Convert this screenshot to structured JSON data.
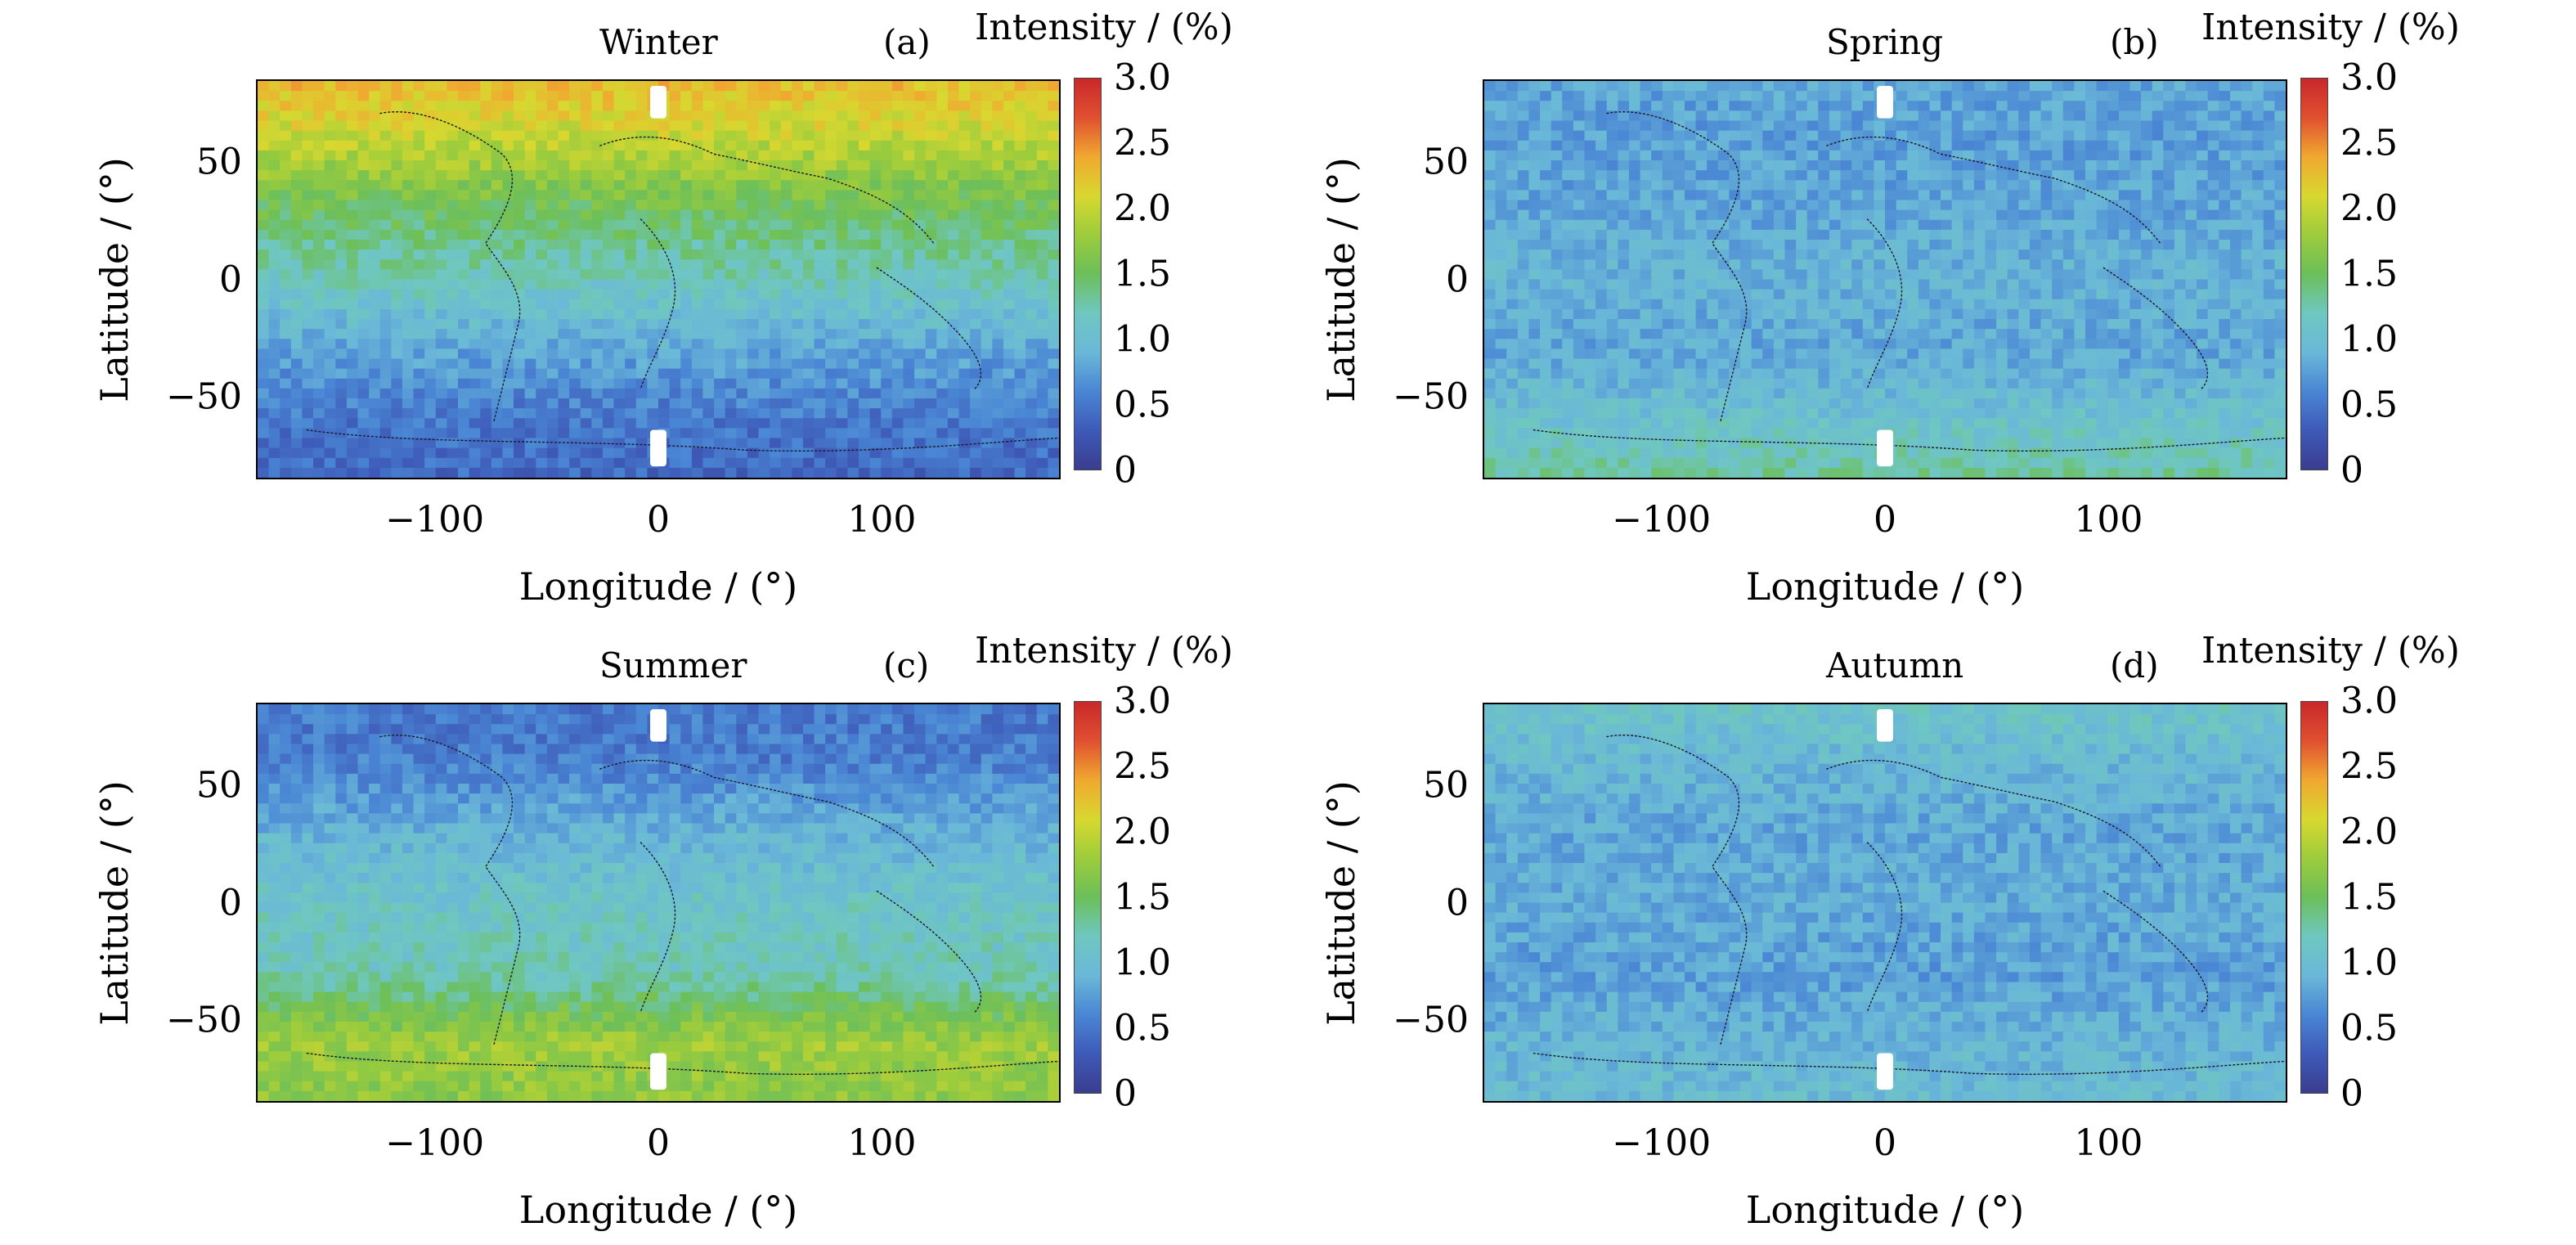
{
  "colorscale": [
    "#3a3d8f",
    "#3e5ab8",
    "#4a86d4",
    "#6ab8d8",
    "#6fc7c0",
    "#6cbf5a",
    "#9ccc3c",
    "#d8d830",
    "#f0a830",
    "#e05030",
    "#c8282a"
  ],
  "chart_data": [
    {
      "type": "heatmap",
      "title": "Winter",
      "panel_label": "(a)",
      "xlabel": "Longitude / (°)",
      "ylabel": "Latitude / (°)",
      "xlim": [
        -180,
        180
      ],
      "ylim": [
        -85,
        85
      ],
      "xticks": [
        "−100",
        "0",
        "100"
      ],
      "yticks": [
        "50",
        "0",
        "−50"
      ],
      "colorbar": {
        "title": "Intensity / (%)",
        "range": [
          0,
          3.0
        ],
        "ticks": [
          "3.0",
          "2.5",
          "2.0",
          "1.5",
          "1.0",
          "0.5",
          "0"
        ]
      },
      "lat_profile": {
        "lat": [
          85,
          60,
          30,
          0,
          -30,
          -60,
          -85
        ],
        "intensity": [
          2.3,
          2.0,
          1.5,
          1.2,
          0.8,
          0.5,
          0.4
        ]
      }
    },
    {
      "type": "heatmap",
      "title": "Spring",
      "panel_label": "(b)",
      "xlabel": "Longitude / (°)",
      "ylabel": "Latitude / (°)",
      "xlim": [
        -180,
        180
      ],
      "ylim": [
        -85,
        85
      ],
      "xticks": [
        "−100",
        "0",
        "100"
      ],
      "yticks": [
        "50",
        "0",
        "−50"
      ],
      "colorbar": {
        "title": "Intensity / (%)",
        "range": [
          0,
          3.0
        ],
        "ticks": [
          "3.0",
          "2.5",
          "2.0",
          "1.5",
          "1.0",
          "0.5",
          "0"
        ]
      },
      "lat_profile": {
        "lat": [
          85,
          60,
          30,
          0,
          -30,
          -60,
          -85
        ],
        "intensity": [
          0.8,
          0.75,
          0.8,
          0.9,
          0.8,
          1.05,
          1.3
        ]
      }
    },
    {
      "type": "heatmap",
      "title": "Summer",
      "panel_label": "(c)",
      "xlabel": "Longitude / (°)",
      "ylabel": "Latitude / (°)",
      "xlim": [
        -180,
        180
      ],
      "ylim": [
        -85,
        85
      ],
      "xticks": [
        "−100",
        "0",
        "100"
      ],
      "yticks": [
        "50",
        "0",
        "−50"
      ],
      "colorbar": {
        "title": "Intensity / (%)",
        "range": [
          0,
          3.0
        ],
        "ticks": [
          "3.0",
          "2.5",
          "2.0",
          "1.5",
          "1.0",
          "0.5",
          "0"
        ]
      },
      "lat_profile": {
        "lat": [
          85,
          60,
          30,
          0,
          -30,
          -60,
          -85
        ],
        "intensity": [
          0.5,
          0.55,
          0.9,
          1.1,
          1.2,
          1.8,
          1.7
        ]
      }
    },
    {
      "type": "heatmap",
      "title": "Autumn",
      "panel_label": "(d)",
      "xlabel": "Longitude / (°)",
      "ylabel": "Latitude / (°)",
      "xlim": [
        -180,
        180
      ],
      "ylim": [
        -85,
        85
      ],
      "xticks": [
        "−100",
        "0",
        "100"
      ],
      "yticks": [
        "50",
        "0",
        "−50"
      ],
      "colorbar": {
        "title": "Intensity / (%)",
        "range": [
          0,
          3.0
        ],
        "ticks": [
          "3.0",
          "2.5",
          "2.0",
          "1.5",
          "1.0",
          "0.5",
          "0"
        ]
      },
      "lat_profile": {
        "lat": [
          85,
          60,
          30,
          0,
          -30,
          -60,
          -85
        ],
        "intensity": [
          1.1,
          0.95,
          0.8,
          0.85,
          0.75,
          0.9,
          1.0
        ]
      }
    }
  ]
}
